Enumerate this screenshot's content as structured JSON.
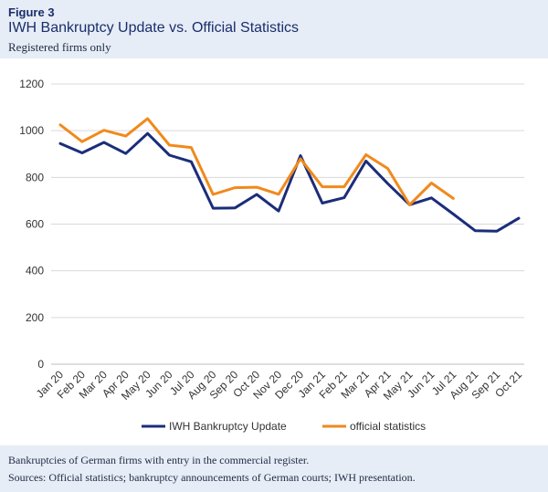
{
  "figure": {
    "label": "Figure 3",
    "title": "IWH Bankruptcy Update vs. Official Statistics",
    "subtitle": "Registered firms only"
  },
  "notes": {
    "line1": "Bankruptcies of German firms with entry in the commercial register.",
    "line2": "Sources: Official statistics; bankruptcy announcements of German courts; IWH presentation."
  },
  "chart_data": {
    "type": "line",
    "title": "IWH Bankruptcy Update vs. Official Statistics",
    "subtitle": "Registered firms only",
    "xlabel": "",
    "ylabel": "",
    "ylim": [
      0,
      1200
    ],
    "yticks": [
      0,
      200,
      400,
      600,
      800,
      1000,
      1200
    ],
    "grid": "horizontal",
    "legend_position": "bottom",
    "categories": [
      "Jan 20",
      "Feb 20",
      "Mar 20",
      "Apr 20",
      "May 20",
      "Jun 20",
      "Jul 20",
      "Aug 20",
      "Sep 20",
      "Oct 20",
      "Nov 20",
      "Dec 20",
      "Jan 21",
      "Feb 21",
      "Mar 21",
      "Apr 21",
      "May 21",
      "Jun 21",
      "Jul 21",
      "Aug 21",
      "Sep 21",
      "Oct 21"
    ],
    "series": [
      {
        "name": "IWH Bankruptcy Update",
        "color": "#1b2d7a",
        "values": [
          945,
          905,
          950,
          902,
          988,
          895,
          867,
          668,
          669,
          727,
          656,
          893,
          690,
          713,
          870,
          773,
          683,
          712,
          643,
          572,
          570,
          625
        ]
      },
      {
        "name": "official statistics",
        "color": "#f08a1c",
        "values": [
          1025,
          953,
          1002,
          977,
          1052,
          938,
          928,
          727,
          756,
          758,
          728,
          880,
          760,
          760,
          897,
          838,
          683,
          776,
          710,
          null,
          null,
          null
        ]
      }
    ]
  }
}
